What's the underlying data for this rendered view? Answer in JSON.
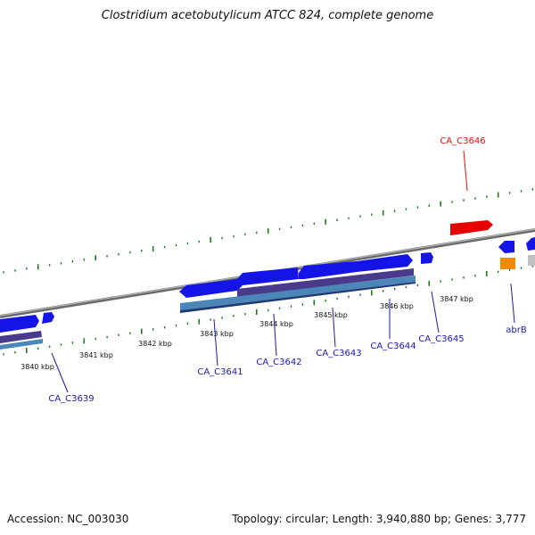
{
  "header": {
    "title": "Clostridium acetobutylicum ATCC 824, complete genome"
  },
  "footer": {
    "accession": "Accession: NC_003030",
    "summary": "Topology: circular; Length: 3,940,880 bp; Genes: 3,777"
  },
  "colors": {
    "backbone": "#8a8a8a",
    "tick": "#1e7a1e",
    "gene_blue": "#1414e6",
    "gene_red": "#e60000",
    "gene_purple": "#4a3a8c",
    "gene_steel": "#4a86b8",
    "gene_orange": "#f08a00",
    "label_blue": "#1a1aa8",
    "label_red": "#e01010"
  },
  "map": {
    "scale_labels": [
      "3840 kbp",
      "3841 kbp",
      "3842 kbp",
      "3843 kbp",
      "3844 kbp",
      "3845 kbp",
      "3846 kbp",
      "3847 kbp"
    ],
    "gene_labels": [
      "CA_C3639",
      "CA_C3641",
      "CA_C3642",
      "CA_C3643",
      "CA_C3644",
      "CA_C3645",
      "CA_C3646",
      "abrB"
    ]
  }
}
